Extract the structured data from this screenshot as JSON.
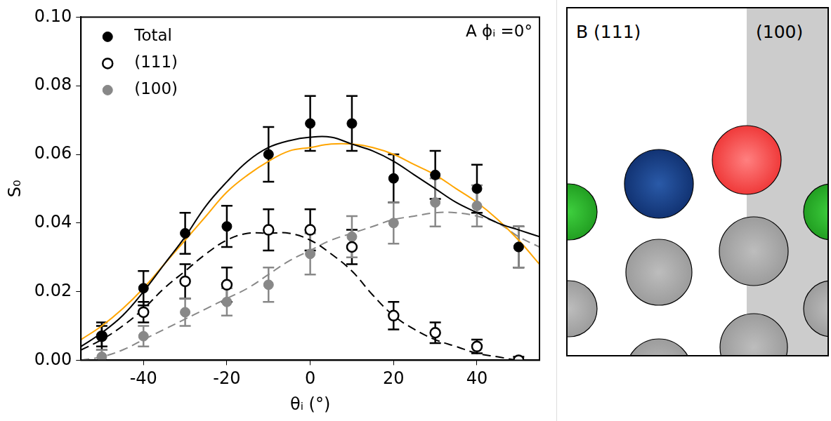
{
  "chart_data": {
    "type": "scatter",
    "panel_letter": "A",
    "annotation": "ϕᵢ =0°",
    "x_label": "θᵢ (°)",
    "y_label": "S₀",
    "xlim": [
      -55,
      55
    ],
    "xticks": [
      -40,
      -20,
      0,
      20,
      40
    ],
    "ylim": [
      0,
      0.1
    ],
    "yticks": [
      {
        "value": 0,
        "label": "0.00"
      },
      {
        "value": 0.02,
        "label": "0.02"
      },
      {
        "value": 0.04,
        "label": "0.04"
      },
      {
        "value": 0.06,
        "label": "0.06"
      },
      {
        "value": 0.08,
        "label": "0.08"
      },
      {
        "value": 0.1,
        "label": "0.10"
      }
    ],
    "grid": false,
    "legend": "upper left",
    "x": [
      -50,
      -40,
      -30,
      -20,
      -10,
      0,
      10,
      20,
      30,
      40,
      50
    ],
    "series": [
      {
        "name": "Total",
        "color": "#000000",
        "marker": "circle",
        "values": [
          0.007,
          0.021,
          0.037,
          0.039,
          0.06,
          0.069,
          0.069,
          0.053,
          0.054,
          0.05,
          0.033
        ],
        "errors": [
          0.004,
          0.005,
          0.006,
          0.006,
          0.008,
          0.008,
          0.008,
          0.007,
          0.007,
          0.007,
          0.006
        ]
      },
      {
        "name": "(111)",
        "color": "#000000",
        "marker": "open_circle",
        "values": [
          0.007,
          0.014,
          0.023,
          0.022,
          0.038,
          0.038,
          0.033,
          0.013,
          0.008,
          0.004,
          0.0
        ],
        "errors": [
          0.003,
          0.003,
          0.005,
          0.005,
          0.006,
          0.006,
          0.005,
          0.004,
          0.003,
          0.002,
          0.001
        ]
      },
      {
        "name": "(100)",
        "color": "#888888",
        "marker": "circle",
        "values": [
          0.001,
          0.007,
          0.014,
          0.017,
          0.022,
          0.031,
          0.036,
          0.04,
          0.046,
          0.045,
          0.033
        ],
        "errors": [
          0.002,
          0.003,
          0.004,
          0.004,
          0.005,
          0.006,
          0.006,
          0.006,
          0.007,
          0.006,
          0.006
        ]
      }
    ],
    "fits": [
      {
        "color": "#000000",
        "line_style": "solid",
        "x": [
          -55,
          -50,
          -45,
          -40,
          -35,
          -30,
          -25,
          -20,
          -15,
          -10,
          -5,
          0,
          5,
          10,
          15,
          20,
          25,
          30,
          35,
          40,
          45,
          50,
          55
        ],
        "values": [
          0.004,
          0.008,
          0.013,
          0.02,
          0.028,
          0.036,
          0.045,
          0.052,
          0.058,
          0.062,
          0.064,
          0.065,
          0.065,
          0.063,
          0.061,
          0.058,
          0.054,
          0.05,
          0.046,
          0.043,
          0.04,
          0.038,
          0.036
        ]
      },
      {
        "color": "#ffa500",
        "line_style": "solid",
        "x": [
          -55,
          -50,
          -45,
          -40,
          -35,
          -30,
          -25,
          -20,
          -15,
          -10,
          -5,
          0,
          5,
          10,
          15,
          20,
          25,
          30,
          35,
          40,
          45,
          50,
          55
        ],
        "values": [
          0.006,
          0.01,
          0.015,
          0.021,
          0.028,
          0.035,
          0.042,
          0.049,
          0.054,
          0.058,
          0.061,
          0.062,
          0.063,
          0.063,
          0.062,
          0.06,
          0.057,
          0.054,
          0.05,
          0.046,
          0.041,
          0.035,
          0.028
        ]
      },
      {
        "color": "#000000",
        "line_style": "dashed",
        "x": [
          -55,
          -50,
          -45,
          -40,
          -35,
          -30,
          -25,
          -20,
          -15,
          -10,
          -5,
          0,
          5,
          10,
          15,
          20,
          25,
          30,
          35,
          40,
          45,
          50,
          55
        ],
        "values": [
          0.003,
          0.006,
          0.01,
          0.015,
          0.021,
          0.026,
          0.031,
          0.035,
          0.037,
          0.037,
          0.037,
          0.035,
          0.031,
          0.026,
          0.019,
          0.013,
          0.009,
          0.006,
          0.004,
          0.002,
          0.001,
          0.0,
          0.0
        ]
      },
      {
        "color": "#888888",
        "line_style": "dashed",
        "x": [
          -55,
          -50,
          -45,
          -40,
          -35,
          -30,
          -25,
          -20,
          -15,
          -10,
          -5,
          0,
          5,
          10,
          15,
          20,
          25,
          30,
          35,
          40,
          45,
          50,
          55
        ],
        "values": [
          0.0,
          0.001,
          0.003,
          0.006,
          0.009,
          0.012,
          0.015,
          0.018,
          0.021,
          0.025,
          0.029,
          0.032,
          0.035,
          0.037,
          0.039,
          0.041,
          0.042,
          0.043,
          0.043,
          0.042,
          0.04,
          0.036,
          0.033
        ]
      }
    ]
  },
  "diagram": {
    "panel_letter": "B",
    "regions": [
      "(111)",
      "(100)"
    ]
  }
}
